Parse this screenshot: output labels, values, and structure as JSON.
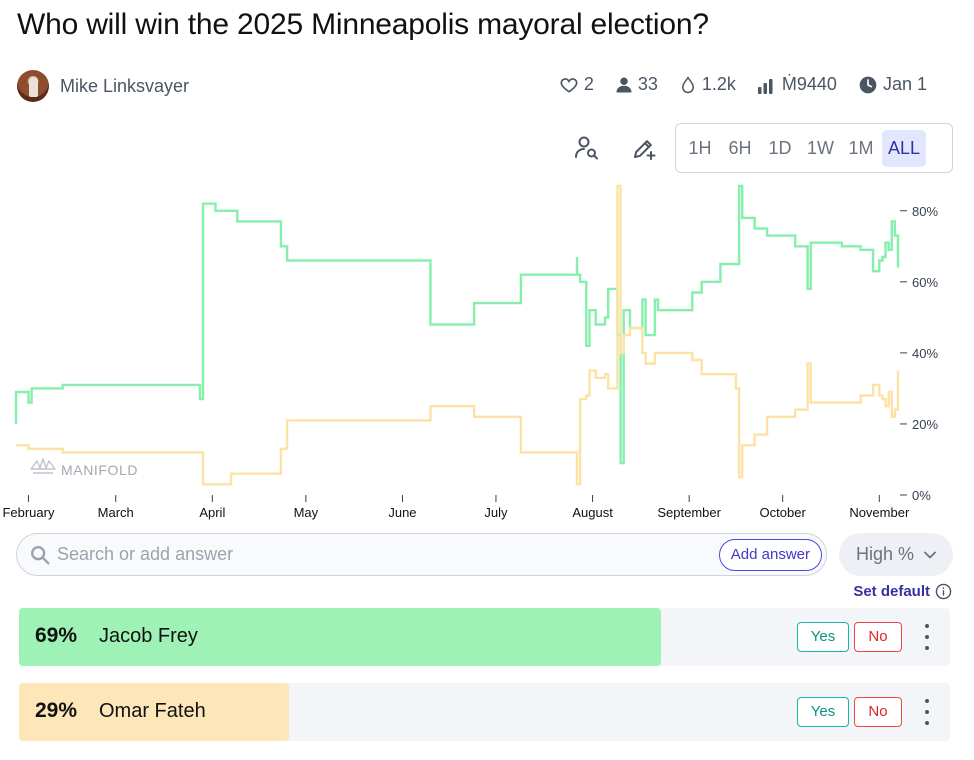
{
  "market": {
    "title": "Who will win the 2025 Minneapolis mayoral election?",
    "author": "Mike Linksvayer"
  },
  "stats": {
    "likes": "2",
    "traders": "33",
    "volume": "1.2k",
    "liquidity": "Ṁ9440",
    "close_date": "Jan 1"
  },
  "time_ranges": [
    "1H",
    "6H",
    "1D",
    "1W",
    "1M",
    "ALL"
  ],
  "active_range": "ALL",
  "watermark": "MANIFOLD",
  "search": {
    "placeholder": "Search or add answer",
    "add_label": "Add answer"
  },
  "sort": {
    "label": "High %"
  },
  "set_default": "Set default",
  "answers": [
    {
      "pct": "69%",
      "prob": 0.69,
      "name": "Jacob Frey",
      "color": "#9ff2b6",
      "yes": "Yes",
      "no": "No"
    },
    {
      "pct": "29%",
      "prob": 0.29,
      "name": "Omar Fateh",
      "color": "#fde6b8",
      "yes": "Yes",
      "no": "No"
    }
  ],
  "colors": {
    "frey_line": "#86efac",
    "fateh_line": "#fde2a6",
    "accent": "#4338ca"
  },
  "chart_data": {
    "type": "line",
    "title": "",
    "xlabel": "",
    "ylabel": "",
    "x_ticks": [
      "February",
      "March",
      "April",
      "May",
      "June",
      "July",
      "August",
      "September",
      "October",
      "November"
    ],
    "y_ticks": [
      "80%",
      "60%",
      "40%",
      "20%",
      "0%"
    ],
    "ylim": [
      0,
      85
    ],
    "x_range": [
      "2025-01-28",
      "2025-11-07"
    ],
    "series": [
      {
        "name": "Jacob Frey",
        "color": "#86efac",
        "points": [
          [
            "2025-01-28",
            20
          ],
          [
            "2025-01-28",
            29
          ],
          [
            "2025-02-01",
            29
          ],
          [
            "2025-02-01",
            26
          ],
          [
            "2025-02-02",
            30
          ],
          [
            "2025-02-12",
            30
          ],
          [
            "2025-02-12",
            31
          ],
          [
            "2025-03-28",
            31
          ],
          [
            "2025-03-28",
            27
          ],
          [
            "2025-03-29",
            82
          ],
          [
            "2025-04-02",
            80
          ],
          [
            "2025-04-09",
            77
          ],
          [
            "2025-04-23",
            77
          ],
          [
            "2025-04-23",
            70
          ],
          [
            "2025-04-25",
            66
          ],
          [
            "2025-06-10",
            66
          ],
          [
            "2025-06-10",
            48
          ],
          [
            "2025-06-24",
            48
          ],
          [
            "2025-06-24",
            54
          ],
          [
            "2025-07-09",
            54
          ],
          [
            "2025-07-09",
            62
          ],
          [
            "2025-07-27",
            62
          ],
          [
            "2025-07-27",
            67
          ],
          [
            "2025-07-27",
            62
          ],
          [
            "2025-07-28",
            60
          ],
          [
            "2025-07-30",
            45
          ],
          [
            "2025-07-30",
            42
          ],
          [
            "2025-07-31",
            52
          ],
          [
            "2025-08-02",
            48
          ],
          [
            "2025-08-05",
            50
          ],
          [
            "2025-08-06",
            58
          ],
          [
            "2025-08-09",
            45
          ],
          [
            "2025-08-10",
            38
          ],
          [
            "2025-08-10",
            9
          ],
          [
            "2025-08-11",
            52
          ],
          [
            "2025-08-13",
            47
          ],
          [
            "2025-08-17",
            55
          ],
          [
            "2025-08-18",
            45
          ],
          [
            "2025-08-21",
            55
          ],
          [
            "2025-08-22",
            52
          ],
          [
            "2025-09-02",
            52
          ],
          [
            "2025-09-02",
            57
          ],
          [
            "2025-09-05",
            57
          ],
          [
            "2025-09-05",
            60
          ],
          [
            "2025-09-11",
            60
          ],
          [
            "2025-09-11",
            65
          ],
          [
            "2025-09-17",
            65
          ],
          [
            "2025-09-17",
            87
          ],
          [
            "2025-09-18",
            78
          ],
          [
            "2025-09-22",
            75
          ],
          [
            "2025-09-26",
            73
          ],
          [
            "2025-10-05",
            73
          ],
          [
            "2025-10-05",
            70
          ],
          [
            "2025-10-09",
            70
          ],
          [
            "2025-10-09",
            58
          ],
          [
            "2025-10-10",
            71
          ],
          [
            "2025-10-20",
            70
          ],
          [
            "2025-10-26",
            70
          ],
          [
            "2025-10-26",
            69
          ],
          [
            "2025-10-30",
            68
          ],
          [
            "2025-10-30",
            63
          ],
          [
            "2025-11-01",
            66
          ],
          [
            "2025-11-02",
            67
          ],
          [
            "2025-11-03",
            71
          ],
          [
            "2025-11-04",
            69
          ],
          [
            "2025-11-05",
            73
          ],
          [
            "2025-11-05",
            77
          ],
          [
            "2025-11-06",
            74
          ],
          [
            "2025-11-06",
            73
          ],
          [
            "2025-11-07",
            64
          ],
          [
            "2025-11-07",
            69
          ]
        ]
      },
      {
        "name": "Omar Fateh",
        "color": "#fde2a6",
        "points": [
          [
            "2025-01-28",
            14
          ],
          [
            "2025-02-01",
            13
          ],
          [
            "2025-02-12",
            12
          ],
          [
            "2025-03-28",
            12
          ],
          [
            "2025-03-29",
            3
          ],
          [
            "2025-04-07",
            3
          ],
          [
            "2025-04-07",
            6
          ],
          [
            "2025-04-23",
            6
          ],
          [
            "2025-04-23",
            13
          ],
          [
            "2025-04-25",
            21
          ],
          [
            "2025-06-10",
            21
          ],
          [
            "2025-06-10",
            25
          ],
          [
            "2025-06-24",
            25
          ],
          [
            "2025-06-24",
            22
          ],
          [
            "2025-07-09",
            22
          ],
          [
            "2025-07-09",
            12
          ],
          [
            "2025-07-27",
            12
          ],
          [
            "2025-07-27",
            3
          ],
          [
            "2025-07-28",
            18
          ],
          [
            "2025-07-28",
            27
          ],
          [
            "2025-07-30",
            28
          ],
          [
            "2025-07-31",
            35
          ],
          [
            "2025-08-02",
            33
          ],
          [
            "2025-08-05",
            34
          ],
          [
            "2025-08-06",
            30
          ],
          [
            "2025-08-09",
            87
          ],
          [
            "2025-08-10",
            40
          ],
          [
            "2025-08-11",
            45
          ],
          [
            "2025-08-13",
            47
          ],
          [
            "2025-08-17",
            40
          ],
          [
            "2025-08-18",
            37
          ],
          [
            "2025-08-21",
            40
          ],
          [
            "2025-09-02",
            38
          ],
          [
            "2025-09-05",
            34
          ],
          [
            "2025-09-11",
            34
          ],
          [
            "2025-09-16",
            30
          ],
          [
            "2025-09-17",
            5
          ],
          [
            "2025-09-18",
            14
          ],
          [
            "2025-09-22",
            17
          ],
          [
            "2025-09-26",
            22
          ],
          [
            "2025-10-05",
            24
          ],
          [
            "2025-10-09",
            24
          ],
          [
            "2025-10-09",
            37
          ],
          [
            "2025-10-10",
            26
          ],
          [
            "2025-10-20",
            26
          ],
          [
            "2025-10-26",
            28
          ],
          [
            "2025-10-30",
            28
          ],
          [
            "2025-10-30",
            31
          ],
          [
            "2025-11-01",
            28
          ],
          [
            "2025-11-02",
            27
          ],
          [
            "2025-11-03",
            25
          ],
          [
            "2025-11-04",
            29
          ],
          [
            "2025-11-05",
            22
          ],
          [
            "2025-11-06",
            24
          ],
          [
            "2025-11-07",
            35
          ],
          [
            "2025-11-07",
            29
          ]
        ]
      }
    ]
  }
}
